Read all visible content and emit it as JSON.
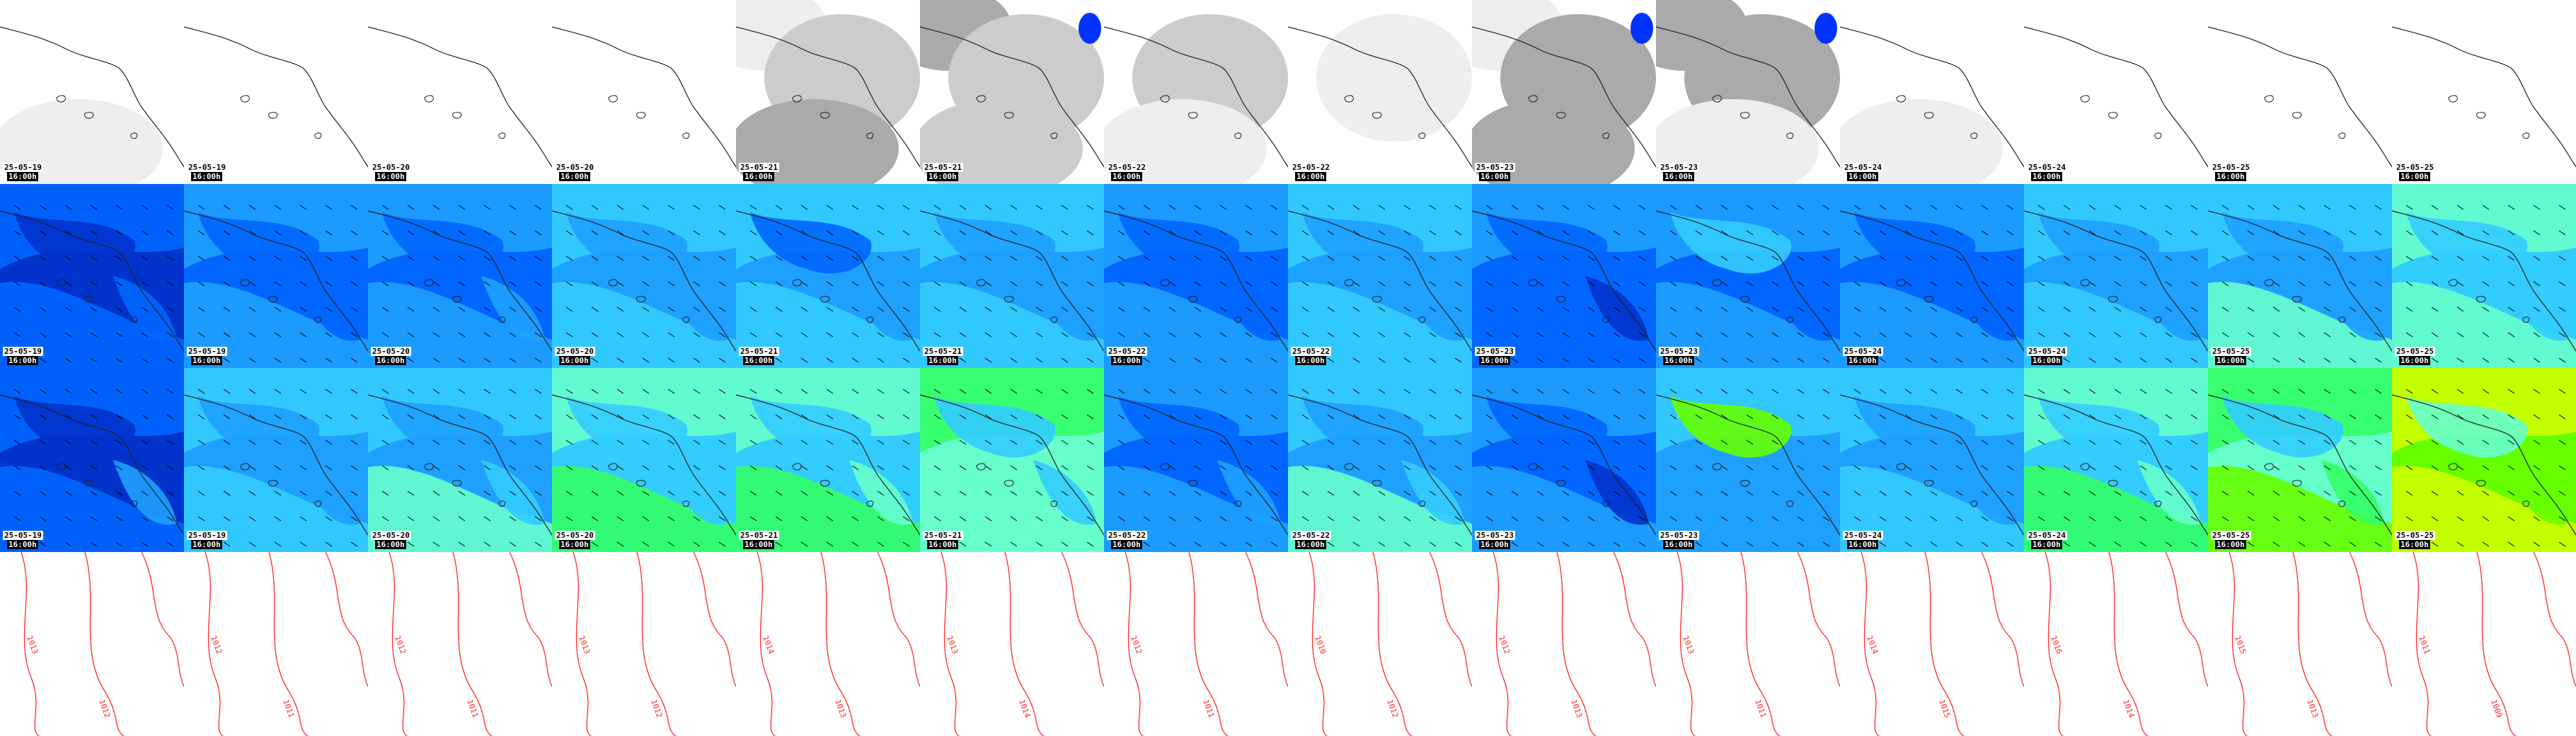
{
  "colors": {
    "coast": "#222222",
    "cloud": [
      "#ffffff",
      "#eeeeee",
      "#cccccc",
      "#aaaaaa",
      "#0033ff"
    ],
    "wind": [
      "#0000a0",
      "#0033cc",
      "#0066ff",
      "#1ea0ff",
      "#33ccff",
      "#66ffcc",
      "#33ff66",
      "#66ff00",
      "#ccff00"
    ],
    "isobar": "#ff2a2a"
  },
  "rows": [
    {
      "kind": "cloud",
      "frames": [
        {
          "date": "25-05-19",
          "time": "16:00h",
          "level": [
            0.1,
            0.05,
            0.2
          ]
        },
        {
          "date": "25-05-19",
          "time": "16:00h",
          "level": [
            0.1,
            0.05,
            0.0
          ]
        },
        {
          "date": "25-05-20",
          "time": "16:00h",
          "level": [
            0.0,
            0.0,
            0.0
          ]
        },
        {
          "date": "25-05-20",
          "time": "16:00h",
          "level": [
            0.1,
            0.0,
            0.0
          ]
        },
        {
          "date": "25-05-21",
          "time": "16:00h",
          "level": [
            0.2,
            0.6,
            0.8
          ]
        },
        {
          "date": "25-05-21",
          "time": "16:00h",
          "level": [
            0.9,
            0.5,
            0.7
          ]
        },
        {
          "date": "25-05-22",
          "time": "16:00h",
          "level": [
            0.1,
            0.6,
            0.2
          ]
        },
        {
          "date": "25-05-22",
          "time": "16:00h",
          "level": [
            0.1,
            0.2,
            0.1
          ]
        },
        {
          "date": "25-05-23",
          "time": "16:00h",
          "level": [
            0.3,
            0.8,
            0.9
          ]
        },
        {
          "date": "25-05-23",
          "time": "16:00h",
          "level": [
            0.9,
            0.8,
            0.2
          ]
        },
        {
          "date": "25-05-24",
          "time": "16:00h",
          "level": [
            0.1,
            0.1,
            0.2
          ]
        },
        {
          "date": "25-05-24",
          "time": "16:00h",
          "level": [
            0.0,
            0.0,
            0.1
          ]
        },
        {
          "date": "25-05-25",
          "time": "16:00h",
          "level": [
            0.0,
            0.0,
            0.0
          ]
        },
        {
          "date": "25-05-25",
          "time": "16:00h",
          "level": [
            0.0,
            0.0,
            0.0
          ]
        }
      ]
    },
    {
      "kind": "wind",
      "frames": [
        {
          "date": "25-05-19",
          "time": "16:00h",
          "level": [
            2,
            1,
            2,
            2
          ]
        },
        {
          "date": "25-05-19",
          "time": "16:00h",
          "level": [
            3,
            2,
            3,
            2
          ]
        },
        {
          "date": "25-05-20",
          "time": "16:00h",
          "level": [
            3,
            2,
            3,
            3
          ]
        },
        {
          "date": "25-05-20",
          "time": "16:00h",
          "level": [
            4,
            3,
            4,
            3
          ]
        },
        {
          "date": "25-05-21",
          "time": "16:00h",
          "level": [
            4,
            2,
            4,
            3
          ]
        },
        {
          "date": "25-05-21",
          "time": "16:00h",
          "level": [
            4,
            3,
            4,
            3
          ]
        },
        {
          "date": "25-05-22",
          "time": "16:00h",
          "level": [
            3,
            2,
            3,
            2
          ]
        },
        {
          "date": "25-05-22",
          "time": "16:00h",
          "level": [
            4,
            3,
            4,
            3
          ]
        },
        {
          "date": "25-05-23",
          "time": "16:00h",
          "level": [
            3,
            2,
            2,
            1
          ]
        },
        {
          "date": "25-05-23",
          "time": "16:00h",
          "level": [
            3,
            4,
            3,
            2
          ]
        },
        {
          "date": "25-05-24",
          "time": "16:00h",
          "level": [
            3,
            2,
            3,
            2
          ]
        },
        {
          "date": "25-05-24",
          "time": "16:00h",
          "level": [
            4,
            3,
            4,
            3
          ]
        },
        {
          "date": "25-05-25",
          "time": "16:00h",
          "level": [
            4,
            3,
            5,
            3
          ]
        },
        {
          "date": "25-05-25",
          "time": "16:00h",
          "level": [
            5,
            4,
            5,
            4
          ]
        }
      ]
    },
    {
      "kind": "wind",
      "frames": [
        {
          "date": "25-05-19",
          "time": "16:00h",
          "level": [
            2,
            1,
            2,
            3
          ]
        },
        {
          "date": "25-05-19",
          "time": "16:00h",
          "level": [
            4,
            3,
            4,
            3
          ]
        },
        {
          "date": "25-05-20",
          "time": "16:00h",
          "level": [
            4,
            3,
            5,
            4
          ]
        },
        {
          "date": "25-05-20",
          "time": "16:00h",
          "level": [
            5,
            4,
            6,
            4
          ]
        },
        {
          "date": "25-05-21",
          "time": "16:00h",
          "level": [
            5,
            4,
            6,
            5
          ]
        },
        {
          "date": "25-05-21",
          "time": "16:00h",
          "level": [
            6,
            4,
            5,
            4
          ]
        },
        {
          "date": "25-05-22",
          "time": "16:00h",
          "level": [
            3,
            2,
            3,
            3
          ]
        },
        {
          "date": "25-05-22",
          "time": "16:00h",
          "level": [
            4,
            3,
            5,
            4
          ]
        },
        {
          "date": "25-05-23",
          "time": "16:00h",
          "level": [
            3,
            2,
            3,
            1
          ]
        },
        {
          "date": "25-05-23",
          "time": "16:00h",
          "level": [
            4,
            7,
            3,
            3
          ]
        },
        {
          "date": "25-05-24",
          "time": "16:00h",
          "level": [
            4,
            3,
            4,
            3
          ]
        },
        {
          "date": "25-05-24",
          "time": "16:00h",
          "level": [
            5,
            4,
            6,
            5
          ]
        },
        {
          "date": "25-05-25",
          "time": "16:00h",
          "level": [
            6,
            4,
            7,
            6
          ]
        },
        {
          "date": "25-05-25",
          "time": "16:00h",
          "level": [
            8,
            5,
            8,
            7
          ]
        }
      ]
    },
    {
      "kind": "isobar",
      "frames": [
        {
          "labels": [
            "1013",
            "1012"
          ]
        },
        {
          "labels": [
            "1012",
            "1011"
          ]
        },
        {
          "labels": [
            "1012",
            "1011"
          ]
        },
        {
          "labels": [
            "1013",
            "1012"
          ]
        },
        {
          "labels": [
            "1014",
            "1013"
          ]
        },
        {
          "labels": [
            "1013",
            "1014"
          ]
        },
        {
          "labels": [
            "1012",
            "1011"
          ]
        },
        {
          "labels": [
            "1010",
            "1012"
          ]
        },
        {
          "labels": [
            "1012",
            "1013"
          ]
        },
        {
          "labels": [
            "1013",
            "1011"
          ]
        },
        {
          "labels": [
            "1014",
            "1015"
          ]
        },
        {
          "labels": [
            "1016",
            "1014"
          ]
        },
        {
          "labels": [
            "1015",
            "1013"
          ]
        },
        {
          "labels": [
            "1011",
            "1009"
          ]
        }
      ]
    }
  ]
}
